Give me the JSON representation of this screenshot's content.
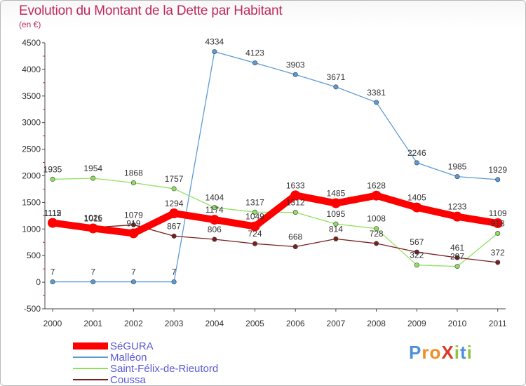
{
  "chart_data": {
    "type": "line",
    "title": "Evolution du Montant de la Dette par Habitant",
    "subtitle": "(en €)",
    "x": [
      "2000",
      "2001",
      "2002",
      "2003",
      "2004",
      "2005",
      "2006",
      "2007",
      "2008",
      "2009",
      "2010",
      "2011"
    ],
    "ylim": [
      -500,
      4500
    ],
    "yticks": [
      -500,
      0,
      500,
      1000,
      1500,
      2000,
      2500,
      3000,
      3500,
      4000,
      4500
    ],
    "grid": false,
    "legend_position": "bottom-left",
    "series": [
      {
        "name": "SéGURA",
        "color": "#ff0000",
        "values": [
          1115,
          1011,
          919,
          1294,
          1174,
          1049,
          1633,
          1485,
          1628,
          1405,
          1233,
          1109
        ]
      },
      {
        "name": "Malléon",
        "color": "#5b9bd5",
        "values": [
          7,
          7,
          7,
          7,
          4334,
          4123,
          3903,
          3671,
          3381,
          2246,
          1985,
          1929
        ]
      },
      {
        "name": "Saint-Félix-de-Rieutord",
        "color": "#90e060",
        "values": [
          1935,
          1954,
          1868,
          1757,
          1404,
          1317,
          1312,
          1095,
          1008,
          322,
          297,
          918
        ]
      },
      {
        "name": "Coussa",
        "color": "#7a1f1f",
        "values": [
          1112,
          1026,
          1079,
          867,
          806,
          724,
          668,
          814,
          728,
          567,
          461,
          372
        ]
      }
    ]
  },
  "logo": {
    "text": "ProXiti",
    "colors": [
      "#4f8fd8",
      "#f28c28",
      "#f28c28",
      "#d93a2b",
      "#8cc63f",
      "#4f8fd8",
      "#8cc63f"
    ]
  }
}
